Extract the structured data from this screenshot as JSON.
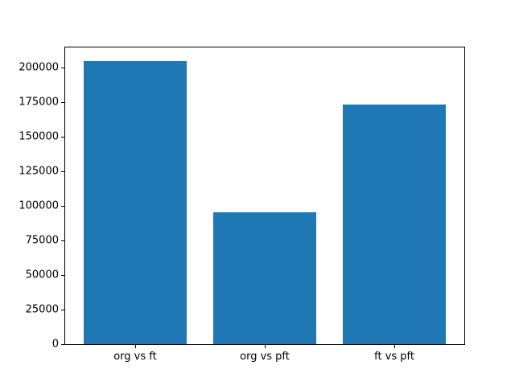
{
  "chart_data": {
    "type": "bar",
    "title": "",
    "xlabel": "",
    "ylabel": "",
    "categories": [
      "org vs ft",
      "org vs pft",
      "ft vs pft"
    ],
    "values": [
      204500,
      95500,
      173500
    ],
    "ytick_values": [
      0,
      25000,
      50000,
      75000,
      100000,
      125000,
      150000,
      175000,
      200000
    ],
    "ytick_labels": [
      "0",
      "25000",
      "50000",
      "75000",
      "100000",
      "125000",
      "150000",
      "175000",
      "200000"
    ],
    "ylim": [
      0,
      214725
    ],
    "bar_width_fraction": 0.8,
    "grid": false,
    "legend": "none",
    "bar_color": "#1f77b4",
    "axes_edge_color": "#000000",
    "background_color": "#ffffff",
    "tick_label_color": "#000000"
  }
}
